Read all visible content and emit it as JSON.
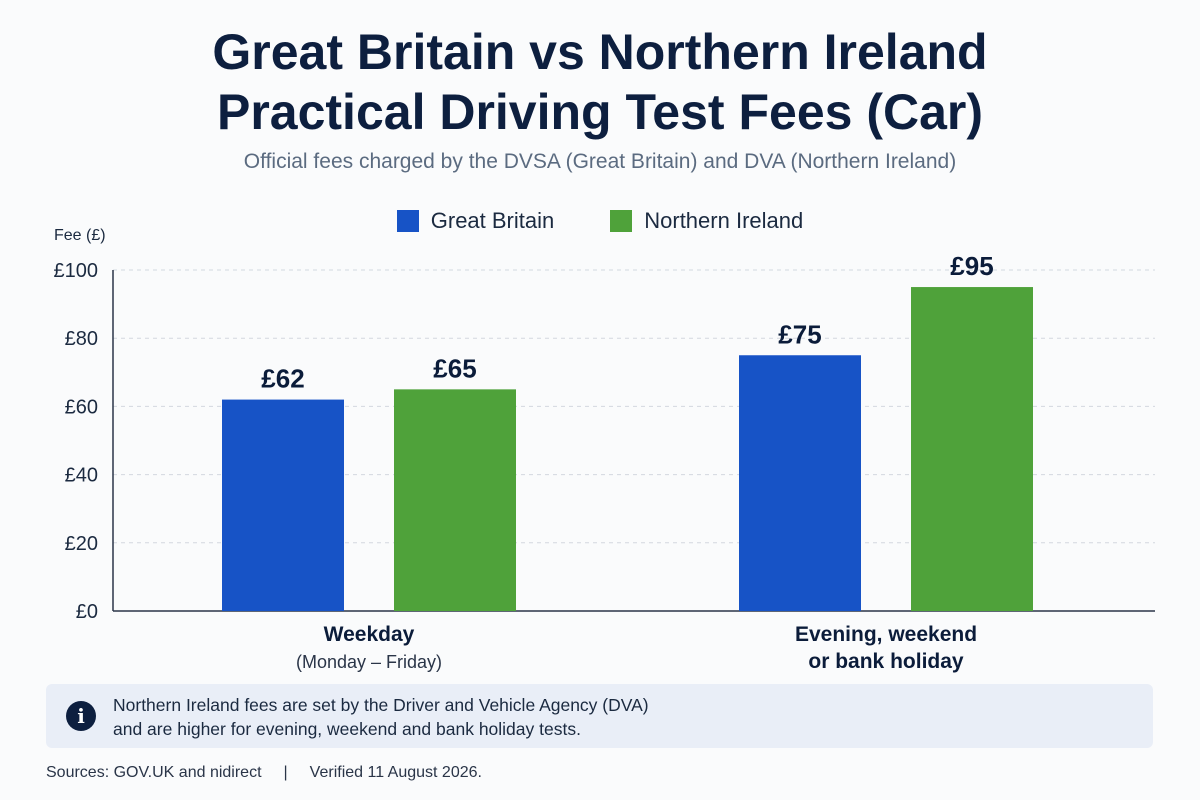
{
  "header": {
    "title_line1": "Great Britain vs Northern Ireland",
    "title_line2": "Practical Driving Test Fees (Car)",
    "subtitle": "Official fees charged by the DVSA (Great Britain) and DVA (Northern Ireland)"
  },
  "chart_data": {
    "type": "bar",
    "ylabel": "Fee (£)",
    "ylim": [
      0,
      100
    ],
    "yticks": [
      0,
      20,
      40,
      60,
      80,
      100
    ],
    "ytick_labels": [
      "£0",
      "£20",
      "£40",
      "£60",
      "£80",
      "£100"
    ],
    "grid": true,
    "legend_position": "top-center",
    "categories": [
      {
        "line1": "Weekday",
        "line2": "(Monday – Friday)"
      },
      {
        "line1": "Evening, weekend",
        "line2": "or bank holiday"
      }
    ],
    "series": [
      {
        "name": "Great Britain",
        "color": "#1753c6",
        "values": [
          62,
          75
        ],
        "labels": [
          "£62",
          "£75"
        ]
      },
      {
        "name": "Northern Ireland",
        "color": "#4fa23a",
        "values": [
          65,
          95
        ],
        "labels": [
          "£65",
          "£95"
        ]
      }
    ]
  },
  "info": {
    "icon": "info-icon",
    "glyph": "i",
    "line1": "Northern Ireland fees are set by the Driver and Vehicle Agency (DVA)",
    "line2": "and are higher for evening, weekend and bank holiday tests."
  },
  "footer": {
    "sources": "Sources: GOV.UK and nidirect",
    "separator": "|",
    "verified": "Verified 11 August 2026."
  }
}
